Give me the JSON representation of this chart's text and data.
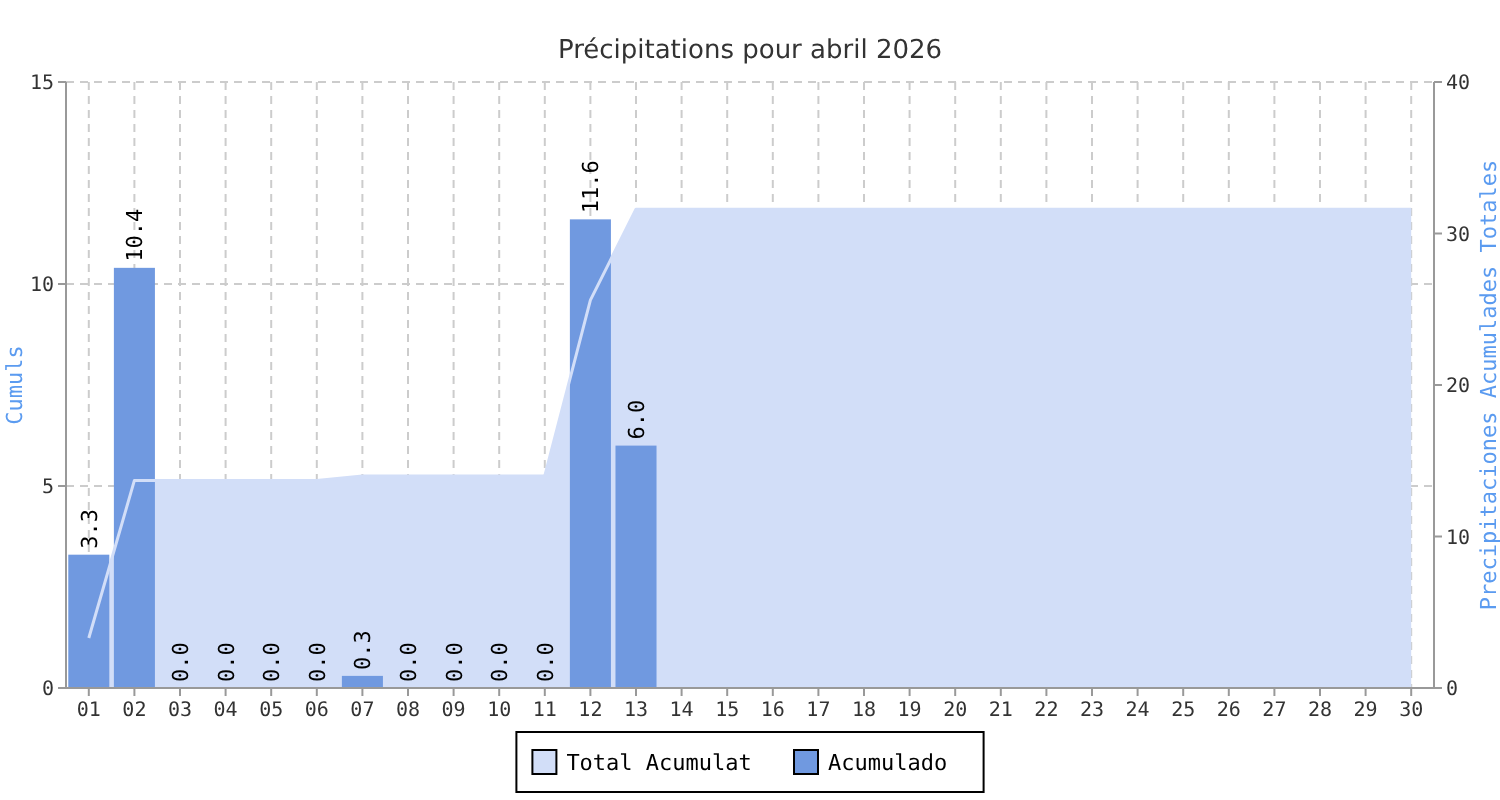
{
  "chart_data": {
    "type": "bar",
    "title": "Précipitations pour abril 2026",
    "ylabel": "Cumuls",
    "y2label": "Precipitaciones Acumulades Totales",
    "categories": [
      "01",
      "02",
      "03",
      "04",
      "05",
      "06",
      "07",
      "08",
      "09",
      "10",
      "11",
      "12",
      "13",
      "14",
      "15",
      "16",
      "17",
      "18",
      "19",
      "20",
      "21",
      "22",
      "23",
      "24",
      "25",
      "26",
      "27",
      "28",
      "29",
      "30"
    ],
    "series": [
      {
        "name": "Total Acumulat",
        "type": "area",
        "axis": "y2",
        "color": "#d2def8",
        "values": [
          3.3,
          13.7,
          13.7,
          13.7,
          13.7,
          13.7,
          14.0,
          14.0,
          14.0,
          14.0,
          14.0,
          25.6,
          31.6,
          31.6,
          31.6,
          31.6,
          31.6,
          31.6,
          31.6,
          31.6,
          31.6,
          31.6,
          31.6,
          31.6,
          31.6,
          31.6,
          31.6,
          31.6,
          31.6,
          31.6
        ]
      },
      {
        "name": "Acumulado",
        "color": "#7099e0",
        "values": [
          3.3,
          10.4,
          0,
          0,
          0,
          0,
          0.3,
          0,
          0,
          0,
          0,
          11.6,
          6.0,
          null,
          null,
          null,
          null,
          null,
          null,
          null,
          null,
          null,
          null,
          null,
          null,
          null,
          null,
          null,
          null,
          null
        ],
        "value_labels": [
          "3.3",
          "10.4",
          "0.0",
          "0.0",
          "0.0",
          "0.0",
          "0.3",
          "0.0",
          "0.0",
          "0.0",
          "0.0",
          "11.6",
          "6.0",
          null,
          null,
          null,
          null,
          null,
          null,
          null,
          null,
          null,
          null,
          null,
          null,
          null,
          null,
          null,
          null,
          null
        ]
      }
    ],
    "ylim": [
      0,
      15
    ],
    "yticks": [
      0,
      5,
      10,
      15
    ],
    "y2lim": [
      0,
      40
    ],
    "y2ticks": [
      0,
      10,
      20,
      30,
      40
    ],
    "grid": true,
    "legend": "bottom"
  }
}
